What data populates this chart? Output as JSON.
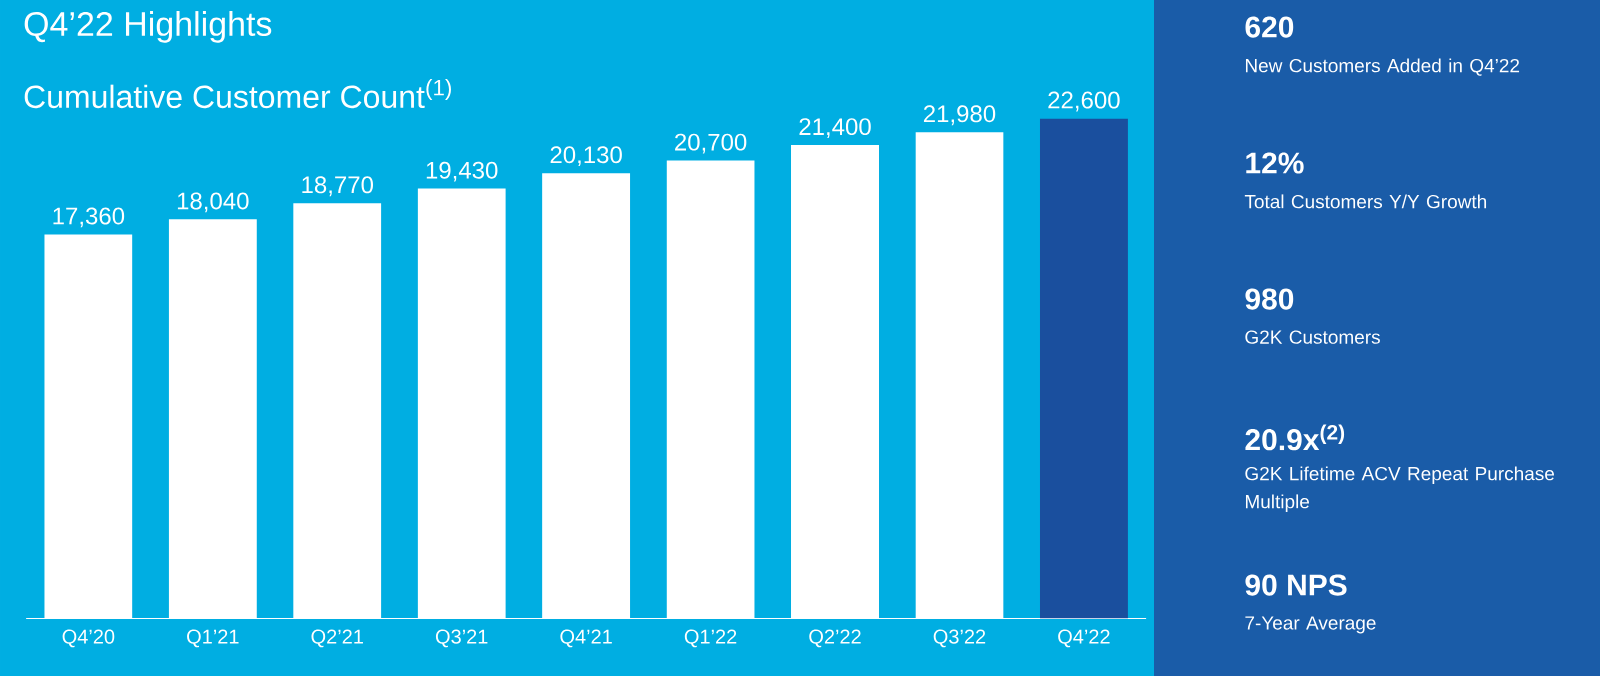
{
  "chart_data": [
    {
      "type": "bar",
      "title": "Q4’22 Highlights",
      "subtitle": "Cumulative Customer Count$^{(1)}$",
      "categories": [
        "Q4’20",
        "Q1’21",
        "Q2’21",
        "Q3’21",
        "Q4’21",
        "Q1’22",
        "Q2’22",
        "Q3’22",
        "Q4’22"
      ],
      "values": [
        17360,
        18040,
        18770,
        19430,
        20130,
        20700,
        21400,
        21980,
        22600
      ],
      "colors": [
        "#ffffff",
        "#ffffff",
        "#ffffff",
        "#ffffff",
        "#ffffff",
        "#ffffff",
        "#ffffff",
        "#ffffff",
        "#1a4f9e"
      ],
      "value_labels": [
        "17,360",
        "18,040",
        "18,770",
        "19,430",
        "20,130",
        "20,700",
        "21,400",
        "21,980",
        "22,600"
      ],
      "tick_labels": "x"
    },
    {
      "type": "other",
      "annotations": [
        "620",
        "New Customers Added in Q4’22",
        "12%",
        "Total Customers Y/Y Growth",
        "980",
        "G2K Customers",
        "20.9x$^{(2)}$",
        "G2K Lifetime ACV Repeat Purchase Multiple",
        "90 NPS",
        "7-Year Average"
      ]
    }
  ]
}
